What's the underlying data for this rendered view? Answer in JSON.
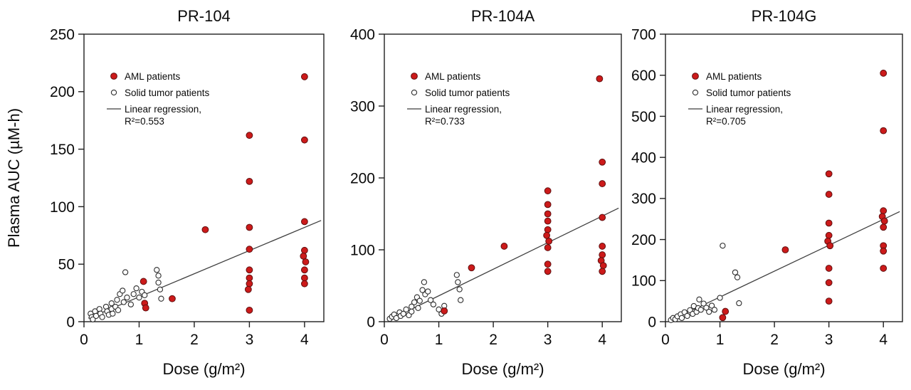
{
  "colors": {
    "aml_fill": "#cc1a1a",
    "aml_stroke": "#5f0f0f",
    "open_fill": "#ffffff",
    "open_stroke": "#2d2d2d",
    "regression_line": "#3f3f3f",
    "axis": "#1f1f1f",
    "text": "#0a0a0a",
    "background": "#ffffff"
  },
  "chart_data": [
    {
      "type": "scatter",
      "title": "PR-104",
      "xlabel": "Dose (g/m²)",
      "ylabel": "Plasma AUC (µM-h)",
      "xlim": [
        0,
        4.35
      ],
      "ylim": [
        0,
        250
      ],
      "xticks": [
        0,
        1,
        2,
        3,
        4
      ],
      "yticks": [
        0,
        50,
        100,
        150,
        200,
        250
      ],
      "grid": false,
      "legend_position": "top-left-inside",
      "legend": [
        "AML patients",
        "Solid tumor patients",
        "Linear regression,",
        "R²=0.553"
      ],
      "regression": {
        "r2": 0.553,
        "x": [
          0.08,
          4.3
        ],
        "y": [
          3,
          88
        ]
      },
      "series": [
        {
          "name": "AML patients",
          "marker": "filled-circle",
          "points": [
            [
              1.08,
              35
            ],
            [
              1.1,
              16
            ],
            [
              1.12,
              12
            ],
            [
              1.6,
              20
            ],
            [
              2.2,
              80
            ],
            [
              3,
              162
            ],
            [
              3,
              122
            ],
            [
              3,
              82
            ],
            [
              3,
              63
            ],
            [
              3,
              45
            ],
            [
              3,
              38
            ],
            [
              3,
              33
            ],
            [
              2.98,
              28
            ],
            [
              3,
              10
            ],
            [
              4,
              213
            ],
            [
              4,
              158
            ],
            [
              4,
              87
            ],
            [
              4,
              62
            ],
            [
              3.98,
              57
            ],
            [
              4.02,
              52
            ],
            [
              4,
              45
            ],
            [
              4,
              38
            ],
            [
              4,
              33
            ]
          ]
        },
        {
          "name": "Solid tumor patients",
          "marker": "open-circle",
          "points": [
            [
              0.12,
              7
            ],
            [
              0.14,
              4
            ],
            [
              0.16,
              2
            ],
            [
              0.2,
              9
            ],
            [
              0.22,
              5
            ],
            [
              0.28,
              11
            ],
            [
              0.3,
              7
            ],
            [
              0.33,
              4
            ],
            [
              0.4,
              13
            ],
            [
              0.42,
              9
            ],
            [
              0.45,
              6
            ],
            [
              0.5,
              16
            ],
            [
              0.5,
              11
            ],
            [
              0.52,
              7
            ],
            [
              0.57,
              13
            ],
            [
              0.6,
              19
            ],
            [
              0.62,
              10
            ],
            [
              0.65,
              24
            ],
            [
              0.7,
              27
            ],
            [
              0.72,
              17
            ],
            [
              0.75,
              43
            ],
            [
              0.78,
              21
            ],
            [
              0.85,
              15
            ],
            [
              0.9,
              24
            ],
            [
              0.95,
              29
            ],
            [
              1.0,
              21
            ],
            [
              1.05,
              26
            ],
            [
              1.1,
              23
            ],
            [
              1.32,
              45
            ],
            [
              1.35,
              40
            ],
            [
              1.35,
              34
            ],
            [
              1.38,
              28
            ],
            [
              1.4,
              20
            ]
          ]
        }
      ]
    },
    {
      "type": "scatter",
      "title": "PR-104A",
      "xlabel": "Dose (g/m²)",
      "ylabel": "",
      "xlim": [
        0,
        4.35
      ],
      "ylim": [
        0,
        400
      ],
      "xticks": [
        0,
        1,
        2,
        3,
        4
      ],
      "yticks": [
        0,
        100,
        200,
        300,
        400
      ],
      "grid": false,
      "legend_position": "top-left-inside",
      "legend": [
        "AML patients",
        "Solid tumor patients",
        "Linear regression,",
        "R²=0.733"
      ],
      "regression": {
        "r2": 0.733,
        "x": [
          0.08,
          4.3
        ],
        "y": [
          2,
          158
        ]
      },
      "series": [
        {
          "name": "AML patients",
          "marker": "filled-circle",
          "points": [
            [
              1.1,
              15
            ],
            [
              1.6,
              75
            ],
            [
              2.2,
              105
            ],
            [
              3,
              182
            ],
            [
              3,
              163
            ],
            [
              3,
              150
            ],
            [
              3,
              140
            ],
            [
              3,
              128
            ],
            [
              2.98,
              120
            ],
            [
              3.02,
              112
            ],
            [
              3,
              103
            ],
            [
              3,
              80
            ],
            [
              3,
              70
            ],
            [
              3.95,
              338
            ],
            [
              4,
              222
            ],
            [
              4,
              192
            ],
            [
              4,
              145
            ],
            [
              4,
              105
            ],
            [
              4,
              93
            ],
            [
              3.98,
              85
            ],
            [
              4.02,
              78
            ],
            [
              4,
              70
            ]
          ]
        },
        {
          "name": "Solid tumor patients",
          "marker": "open-circle",
          "points": [
            [
              0.1,
              4
            ],
            [
              0.14,
              7
            ],
            [
              0.18,
              10
            ],
            [
              0.22,
              5
            ],
            [
              0.28,
              13
            ],
            [
              0.3,
              8
            ],
            [
              0.35,
              11
            ],
            [
              0.4,
              17
            ],
            [
              0.45,
              9
            ],
            [
              0.5,
              21
            ],
            [
              0.5,
              14
            ],
            [
              0.55,
              27
            ],
            [
              0.6,
              34
            ],
            [
              0.62,
              19
            ],
            [
              0.65,
              29
            ],
            [
              0.7,
              44
            ],
            [
              0.73,
              55
            ],
            [
              0.75,
              38
            ],
            [
              0.8,
              42
            ],
            [
              0.85,
              30
            ],
            [
              0.9,
              24
            ],
            [
              1.0,
              17
            ],
            [
              1.05,
              11
            ],
            [
              1.1,
              22
            ],
            [
              1.33,
              65
            ],
            [
              1.35,
              55
            ],
            [
              1.38,
              45
            ],
            [
              1.4,
              30
            ]
          ]
        }
      ]
    },
    {
      "type": "scatter",
      "title": "PR-104G",
      "xlabel": "Dose (g/m²)",
      "ylabel": "",
      "xlim": [
        0,
        4.35
      ],
      "ylim": [
        0,
        700
      ],
      "xticks": [
        0,
        1,
        2,
        3,
        4
      ],
      "yticks": [
        0,
        100,
        200,
        300,
        400,
        500,
        600,
        700
      ],
      "grid": false,
      "legend_position": "top-left-inside",
      "legend": [
        "AML patients",
        "Solid tumor patients",
        "Linear regression,",
        "R²=0.705"
      ],
      "regression": {
        "r2": 0.705,
        "x": [
          0.08,
          4.3
        ],
        "y": [
          2,
          268
        ]
      },
      "series": [
        {
          "name": "AML patients",
          "marker": "filled-circle",
          "points": [
            [
              1.05,
              10
            ],
            [
              1.1,
              25
            ],
            [
              2.2,
              175
            ],
            [
              3,
              360
            ],
            [
              3,
              310
            ],
            [
              3,
              240
            ],
            [
              3,
              210
            ],
            [
              2.98,
              196
            ],
            [
              3.02,
              185
            ],
            [
              3,
              130
            ],
            [
              3,
              95
            ],
            [
              3,
              50
            ],
            [
              4,
              605
            ],
            [
              4,
              465
            ],
            [
              4,
              270
            ],
            [
              3.98,
              256
            ],
            [
              4.02,
              245
            ],
            [
              4,
              230
            ],
            [
              4,
              185
            ],
            [
              4,
              172
            ],
            [
              4,
              130
            ]
          ]
        },
        {
          "name": "Solid tumor patients",
          "marker": "open-circle",
          "points": [
            [
              0.1,
              4
            ],
            [
              0.14,
              9
            ],
            [
              0.18,
              6
            ],
            [
              0.22,
              13
            ],
            [
              0.28,
              18
            ],
            [
              0.3,
              9
            ],
            [
              0.35,
              23
            ],
            [
              0.4,
              14
            ],
            [
              0.45,
              28
            ],
            [
              0.5,
              19
            ],
            [
              0.52,
              38
            ],
            [
              0.57,
              24
            ],
            [
              0.6,
              33
            ],
            [
              0.62,
              54
            ],
            [
              0.65,
              29
            ],
            [
              0.7,
              44
            ],
            [
              0.75,
              34
            ],
            [
              0.8,
              24
            ],
            [
              0.85,
              39
            ],
            [
              0.9,
              29
            ],
            [
              1.0,
              58
            ],
            [
              1.05,
              185
            ],
            [
              1.28,
              120
            ],
            [
              1.32,
              108
            ],
            [
              1.35,
              45
            ]
          ]
        }
      ]
    }
  ]
}
